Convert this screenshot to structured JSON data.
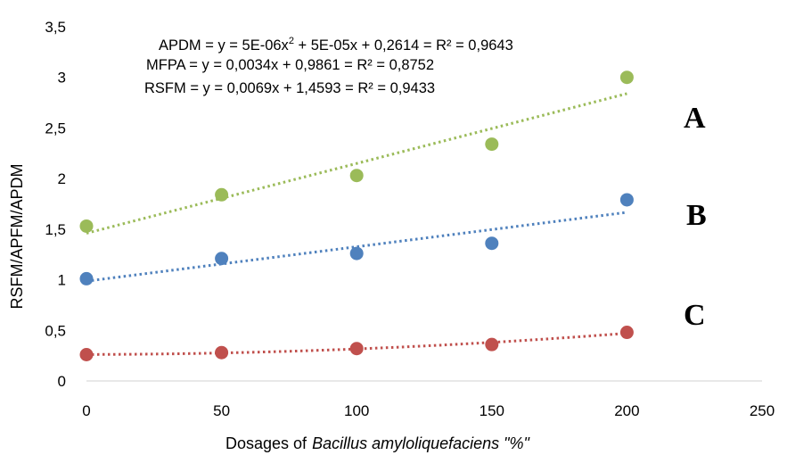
{
  "chart_data": {
    "type": "scatter",
    "xlabel_prefix": "Dosages of",
    "xlabel_italic": "Bacillus amyloliquefaciens \"%\"",
    "ylabel": "RSFM/APFM/APDM",
    "xlim": [
      0,
      250
    ],
    "ylim": [
      0,
      3.5
    ],
    "x_ticks": [
      "0",
      "50",
      "100",
      "150",
      "200",
      "250"
    ],
    "y_ticks": [
      "0",
      "0,5",
      "1",
      "1,5",
      "2",
      "2,5",
      "3",
      "3,5"
    ],
    "grid": false,
    "equations": {
      "apdm_prefix": "APDM = y = 5E-06x",
      "apdm_sup": "2",
      "apdm_suffix": " + 5E-05x + 0,2614 = R² = 0,9643",
      "mfpa": "MFPA = y = 0,0034x + 0,9861 = R² = 0,8752",
      "rsfm": "RSFM = y = 0,0069x + 1,4593 = R² = 0,9433"
    },
    "series": [
      {
        "label": "A",
        "color": "#9bbb59",
        "x": [
          0,
          50,
          100,
          150,
          200
        ],
        "y": [
          1.53,
          1.84,
          2.03,
          2.34,
          3.0
        ],
        "trend": {
          "kind": "linear",
          "a": 0.0069,
          "b": 1.4593
        }
      },
      {
        "label": "B",
        "color": "#4f81bd",
        "x": [
          0,
          50,
          100,
          150,
          200
        ],
        "y": [
          1.01,
          1.21,
          1.26,
          1.36,
          1.79
        ],
        "trend": {
          "kind": "linear",
          "a": 0.0034,
          "b": 0.9861
        }
      },
      {
        "label": "C",
        "color": "#c0504d",
        "x": [
          0,
          50,
          100,
          150,
          200
        ],
        "y": [
          0.26,
          0.28,
          0.32,
          0.36,
          0.48
        ],
        "trend": {
          "kind": "poly2",
          "c2": 5e-06,
          "c1": 5e-05,
          "c0": 0.2614
        }
      }
    ]
  }
}
